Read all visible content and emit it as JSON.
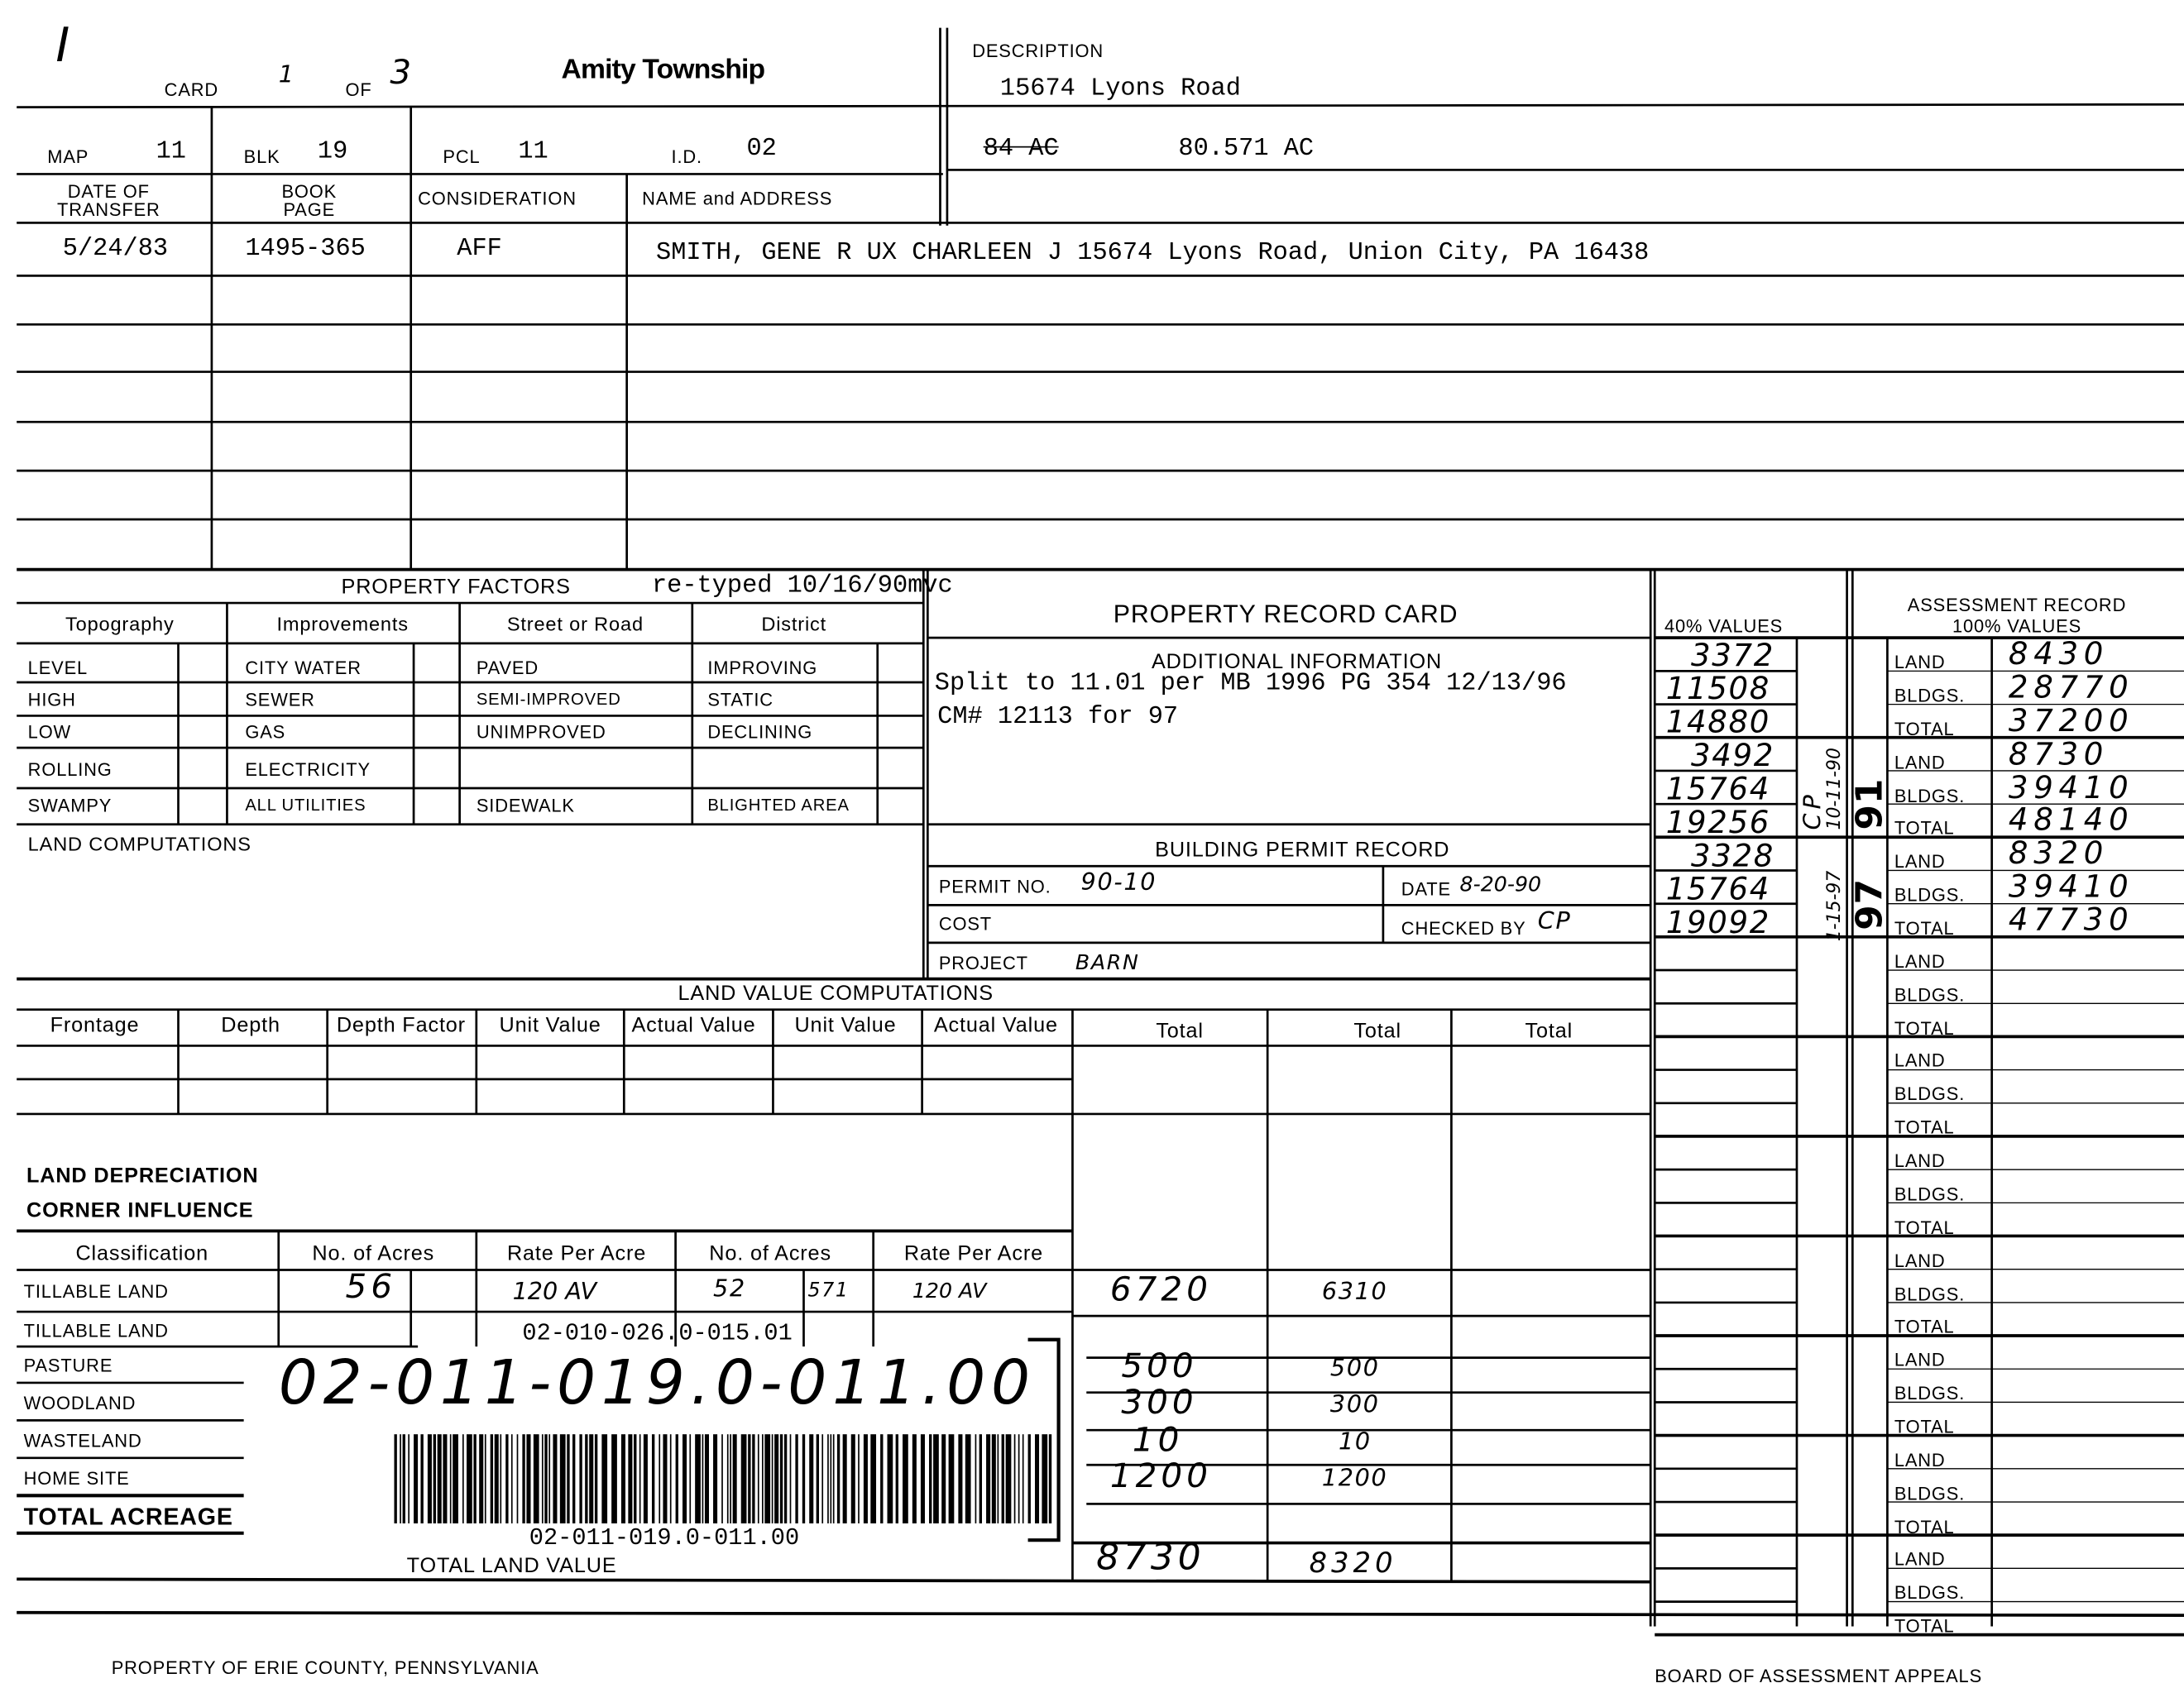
{
  "header": {
    "corner_mark": "I",
    "card_label": "CARD",
    "card_number": "1",
    "of_label": "OF",
    "card_total": "3",
    "township": "Amity Township",
    "map_label": "MAP",
    "map_value": "11",
    "blk_label": "BLK",
    "blk_value": "19",
    "pcl_label": "PCL",
    "pcl_value": "11",
    "id_label": "I.D.",
    "id_value": "02"
  },
  "description": {
    "label": "DESCRIPTION",
    "address": "15674 Lyons Road",
    "old_acreage": "84 AC",
    "acreage": "80.571 AC"
  },
  "transfers": {
    "columns": [
      "DATE OF TRANSFER",
      "BOOK PAGE",
      "CONSIDERATION",
      "NAME and ADDRESS"
    ],
    "rows": [
      {
        "date": "5/24/83",
        "book_page": "1495-365",
        "consideration": "AFF",
        "name_address": "SMITH, GENE R UX CHARLEEN J  15674 Lyons Road, Union City,  PA  16438"
      }
    ]
  },
  "property_factors": {
    "title": "PROPERTY FACTORS",
    "retyped_note": "re-typed 10/16/90mvc",
    "columns": [
      "Topography",
      "Improvements",
      "Street or Road",
      "District"
    ],
    "topography": [
      "LEVEL",
      "HIGH",
      "LOW",
      "ROLLING",
      "SWAMPY"
    ],
    "improvements": [
      "CITY WATER",
      "SEWER",
      "GAS",
      "ELECTRICITY",
      "ALL UTILITIES"
    ],
    "street": [
      "PAVED",
      "SEMI-IMPROVED",
      "UNIMPROVED",
      "",
      "SIDEWALK"
    ],
    "district": [
      "IMPROVING",
      "STATIC",
      "DECLINING",
      "",
      "BLIGHTED AREA"
    ],
    "land_computations": "LAND COMPUTATIONS"
  },
  "record_card": {
    "title": "PROPERTY RECORD CARD",
    "additional_info_title": "ADDITIONAL INFORMATION",
    "additional_info_line1": "Split to 11.01 per MB 1996 PG 354  12/13/96",
    "additional_info_line2": "CM# 12113 for 97"
  },
  "building_permit": {
    "title": "BUILDING PERMIT RECORD",
    "permit_no_label": "PERMIT NO.",
    "permit_no": "90-10",
    "date_label": "DATE",
    "date": "8-20-90",
    "cost_label": "COST",
    "cost": "",
    "checked_by_label": "CHECKED BY",
    "checked_by": "CP",
    "project_label": "PROJECT",
    "project": "BARN"
  },
  "land_value": {
    "title": "LAND VALUE COMPUTATIONS",
    "columns": [
      "Frontage",
      "Depth",
      "Depth Factor",
      "Unit Value",
      "Actual Value",
      "Unit Value",
      "Actual Value",
      "Total",
      "Total",
      "Total"
    ],
    "land_depreciation": "LAND DEPRECIATION",
    "corner_influence": "CORNER INFLUENCE"
  },
  "acreage": {
    "columns": [
      "Classification",
      "No. of Acres",
      "Rate Per Acre",
      "No. of Acres",
      "Rate Per Acre"
    ],
    "rows": [
      {
        "label": "TILLABLE LAND",
        "acres1": "56",
        "rate1": "120 AV",
        "acres2": "52",
        "acres2_frac": "571",
        "rate2": "120 AV",
        "total1": "6720",
        "total2": "6310"
      },
      {
        "label": "TILLABLE LAND",
        "total1": "",
        "total2": ""
      },
      {
        "label": "PASTURE",
        "total1": "500",
        "total2": "500"
      },
      {
        "label": "WOODLAND",
        "total1": "300",
        "total2": "300"
      },
      {
        "label": "WASTELAND",
        "total1": "10",
        "total2": "10"
      },
      {
        "label": "HOME SITE",
        "total1": "1200",
        "total2": "1200"
      }
    ],
    "total_acreage_label": "TOTAL ACREAGE",
    "total_land_value_label": "TOTAL LAND VALUE",
    "total_land_value_1": "8730",
    "total_land_value_2": "8320"
  },
  "sticker": {
    "old_parcel_id": "02-010-026.0-015.01",
    "handwritten_parcel_id": "02-011-019.0-011.00",
    "barcode_text": "02-011-019.0-011.00"
  },
  "values_40": {
    "header": "40% VALUES",
    "values": [
      "3372",
      "11508",
      "14880",
      "3492",
      "15764",
      "19256",
      "3328",
      "15764",
      "19092"
    ],
    "notes": [
      "CP",
      "10-11-90",
      "1-15-97"
    ],
    "years": [
      "91",
      "97"
    ]
  },
  "assessment": {
    "header_line1": "ASSESSMENT RECORD",
    "header_line2": "100% VALUES",
    "labels": [
      "LAND",
      "BLDGS.",
      "TOTAL"
    ],
    "groups": [
      {
        "land": "8430",
        "bldgs": "28770",
        "total": "37200"
      },
      {
        "land": "8730",
        "bldgs": "39410",
        "total": "48140"
      },
      {
        "land": "8320",
        "bldgs": "39410",
        "total": "47730"
      },
      {
        "land": "",
        "bldgs": "",
        "total": ""
      },
      {
        "land": "",
        "bldgs": "",
        "total": ""
      },
      {
        "land": "",
        "bldgs": "",
        "total": ""
      },
      {
        "land": "",
        "bldgs": "",
        "total": ""
      },
      {
        "land": "",
        "bldgs": "",
        "total": ""
      },
      {
        "land": "",
        "bldgs": "",
        "total": ""
      },
      {
        "land": "",
        "bldgs": "",
        "total": ""
      }
    ]
  },
  "footer": {
    "left": "PROPERTY OF ERIE COUNTY, PENNSYLVANIA",
    "right": "BOARD OF ASSESSMENT APPEALS"
  }
}
